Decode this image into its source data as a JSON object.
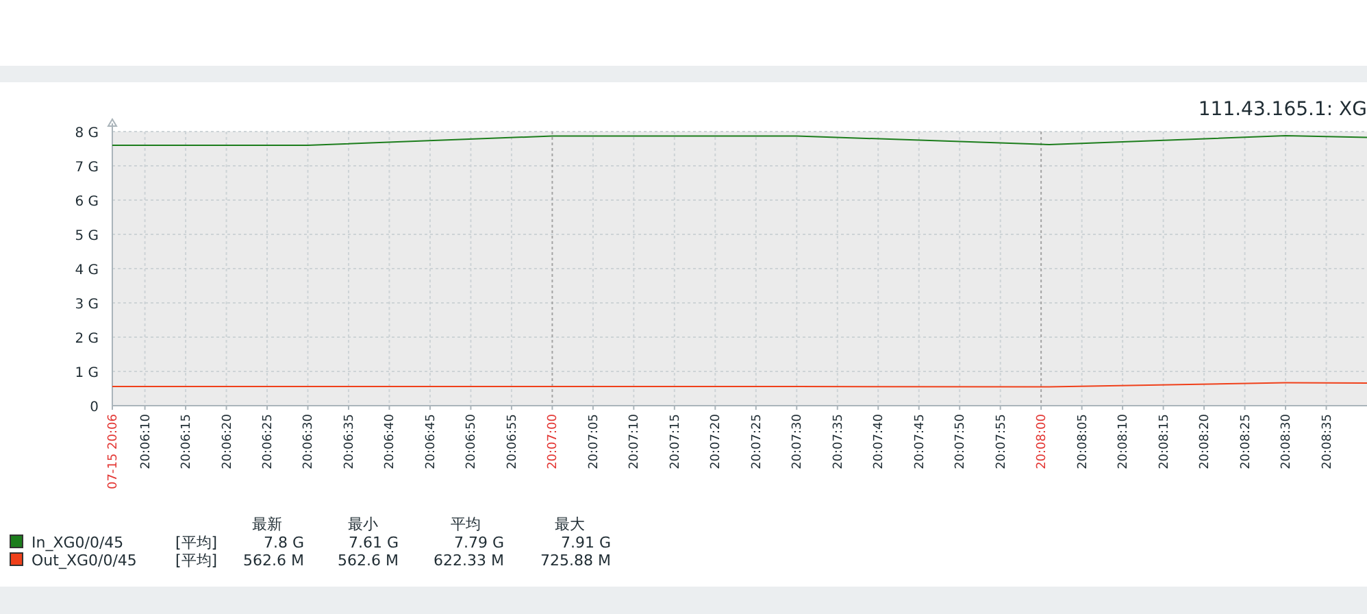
{
  "chart_data": {
    "type": "line",
    "title": "111.43.165.1: XG",
    "xlim": [
      20.101667,
      20.144444
    ],
    "xticks": [
      {
        "value": 20.101667,
        "label": "07-15 20:06"
      },
      {
        "value": 20.102778,
        "label": "20:06:10"
      },
      {
        "value": 20.104167,
        "label": "20:06:15"
      },
      {
        "value": 20.105556,
        "label": "20:06:20"
      },
      {
        "value": 20.106944,
        "label": "20:06:25"
      },
      {
        "value": 20.108333,
        "label": "20:06:30"
      },
      {
        "value": 20.109722,
        "label": "20:06:35"
      },
      {
        "value": 20.111111,
        "label": "20:06:40"
      },
      {
        "value": 20.1125,
        "label": "20:06:45"
      },
      {
        "value": 20.113889,
        "label": "20:06:50"
      },
      {
        "value": 20.115278,
        "label": "20:06:55"
      },
      {
        "value": 20.116667,
        "label": "20:07:00"
      },
      {
        "value": 20.118056,
        "label": "20:07:05"
      },
      {
        "value": 20.119444,
        "label": "20:07:10"
      },
      {
        "value": 20.120833,
        "label": "20:07:15"
      },
      {
        "value": 20.122222,
        "label": "20:07:20"
      },
      {
        "value": 20.123611,
        "label": "20:07:25"
      },
      {
        "value": 20.125,
        "label": "20:07:30"
      },
      {
        "value": 20.126389,
        "label": "20:07:35"
      },
      {
        "value": 20.127778,
        "label": "20:07:40"
      },
      {
        "value": 20.129167,
        "label": "20:07:45"
      },
      {
        "value": 20.130556,
        "label": "20:07:50"
      },
      {
        "value": 20.131944,
        "label": "20:07:55"
      },
      {
        "value": 20.133333,
        "label": "20:08:00"
      },
      {
        "value": 20.134722,
        "label": "20:08:05"
      },
      {
        "value": 20.136111,
        "label": "20:08:10"
      },
      {
        "value": 20.1375,
        "label": "20:08:15"
      },
      {
        "value": 20.138889,
        "label": "20:08:20"
      },
      {
        "value": 20.140278,
        "label": "20:08:25"
      },
      {
        "value": 20.141667,
        "label": "20:08:30"
      },
      {
        "value": 20.143056,
        "label": "20:08:35"
      }
    ],
    "ylim": [
      0,
      8
    ],
    "yticks": [
      0,
      {
        "value": 1,
        "label": "1 G"
      },
      {
        "value": 2,
        "label": "2 G"
      },
      {
        "value": 3,
        "label": "3 G"
      },
      {
        "value": 4,
        "label": "4 G"
      },
      {
        "value": 5,
        "label": "5 G"
      },
      {
        "value": 6,
        "label": "6 G"
      },
      {
        "value": 7,
        "label": "7 G"
      },
      {
        "value": 8,
        "label": "8 G"
      }
    ],
    "x": [
      20.101667,
      20.108333,
      20.116667,
      20.125,
      20.133611,
      20.141667,
      20.144444
    ],
    "series": [
      {
        "name": "In_XG0/0/45",
        "color": "#1c7d1c",
        "values": [
          7.6,
          7.6,
          7.87,
          7.87,
          7.62,
          7.88,
          7.83
        ]
      },
      {
        "name": "Out_XG0/0/45",
        "color": "#f0401a",
        "values": [
          0.56,
          0.56,
          0.56,
          0.56,
          0.55,
          0.67,
          0.66
        ]
      }
    ],
    "annotations": [
      "最新",
      "最小",
      "平均",
      "最大",
      "[平均]",
      "7.8 G",
      "7.61 G",
      "7.79 G",
      "7.91 G",
      "[平均]",
      "562.6 M",
      "562.6 M",
      "622.33 M",
      "725.88 M"
    ],
    "grid": true,
    "legend": "bottom left",
    "marker": "none",
    "line_style": "solid"
  }
}
